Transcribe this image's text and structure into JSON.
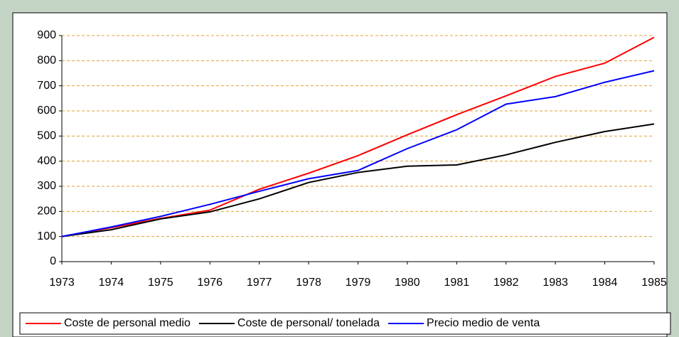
{
  "chart_data": {
    "type": "line",
    "categories": [
      "1973",
      "1974",
      "1975",
      "1976",
      "1977",
      "1978",
      "1979",
      "1980",
      "1981",
      "1982",
      "1983",
      "1984",
      "1985"
    ],
    "series": [
      {
        "name": "Coste de personal medio",
        "color": "#ff0000",
        "values": [
          100,
          135,
          172,
          205,
          288,
          352,
          422,
          505,
          585,
          660,
          737,
          790,
          893
        ]
      },
      {
        "name": "Coste de personal/ tonelada",
        "color": "#000000",
        "values": [
          100,
          127,
          170,
          198,
          250,
          315,
          355,
          380,
          385,
          425,
          475,
          518,
          548
        ]
      },
      {
        "name": "Precio medio de venta",
        "color": "#0000ff",
        "values": [
          100,
          138,
          180,
          228,
          280,
          330,
          363,
          450,
          525,
          627,
          657,
          714,
          760
        ]
      }
    ],
    "ylim": [
      0,
      900
    ],
    "yticks": [
      0,
      100,
      200,
      300,
      400,
      500,
      600,
      700,
      800,
      900
    ],
    "grid": true,
    "legend": "bottom"
  }
}
